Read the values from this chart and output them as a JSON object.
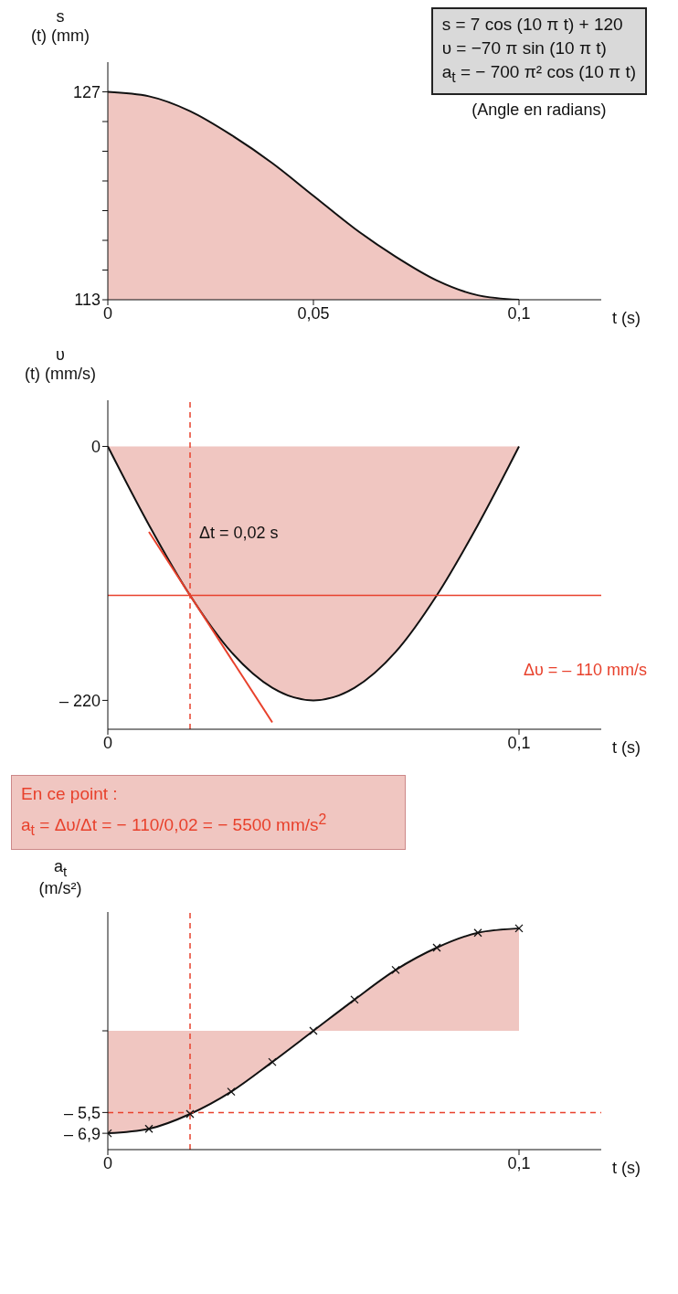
{
  "chart_data": [
    {
      "type": "area",
      "ylabel": "s (t) (mm)",
      "xlabel": "t (s)",
      "annotations": [
        "s  = 7 cos (10 π t) + 120",
        "υ  = −70 π sin (10 π t)",
        "a$_{t}$ = − 700 π² cos (10 π t)",
        "(Angle en radians)"
      ],
      "x": [
        0,
        0.01,
        0.02,
        0.03,
        0.04,
        0.05,
        0.06,
        0.07,
        0.08,
        0.09,
        0.1
      ],
      "series": [
        {
          "color": "#f0c6c1",
          "values": [
            127,
            126.7,
            125.7,
            124.1,
            122.2,
            120,
            117.8,
            115.9,
            114.3,
            113.3,
            113
          ]
        }
      ],
      "xlim": [
        0,
        0.12
      ],
      "ylim": [
        113,
        129
      ],
      "xticks": [
        {
          "value": 0,
          "label": "0"
        },
        {
          "value": 0.05,
          "label": "0,05"
        },
        {
          "value": 0.1,
          "label": "0,1"
        }
      ],
      "yticks": [
        113,
        {
          "value": 115,
          "label": null
        },
        {
          "value": 117,
          "label": null
        },
        {
          "value": 119,
          "label": null
        },
        {
          "value": 121,
          "label": null
        },
        {
          "value": 123,
          "label": null
        },
        {
          "value": 125,
          "label": null
        },
        127
      ],
      "grid": false,
      "legend": false,
      "marker": "none"
    },
    {
      "type": "area",
      "ylabel": "υ (t) (mm/s)",
      "xlabel": "t (s)",
      "annotations": [
        "Δt = 0,02 s",
        "Δυ = – 110 mm/s"
      ],
      "x": [
        0,
        0.01,
        0.02,
        0.03,
        0.04,
        0.05,
        0.06,
        0.07,
        0.08,
        0.09,
        0.1
      ],
      "series": [
        {
          "color": "#f0c6c1",
          "values": [
            0,
            -68,
            -129,
            -178,
            -209,
            -220,
            -209,
            -178,
            -129,
            -68,
            0
          ]
        },
        {
          "type": "line",
          "color": "#e8412c",
          "x": [
            0.01,
            0.04
          ],
          "values": [
            -74,
            -239
          ]
        }
      ],
      "xlim": [
        0,
        0.12
      ],
      "ylim": [
        -245,
        40
      ],
      "xticks": [
        {
          "value": 0,
          "label": "0"
        },
        {
          "value": 0.1,
          "label": "0,1"
        }
      ],
      "yticks": [
        0,
        {
          "value": -220,
          "label": "– 220"
        }
      ],
      "ref_lines": [
        {
          "axis": "x",
          "value": 0.02,
          "color": "#e8412c",
          "line_style": "dashed"
        },
        {
          "axis": "y",
          "value": -129,
          "color": "#e8412c",
          "line_style": "solid"
        }
      ],
      "grid": false,
      "legend": false,
      "marker": "none"
    },
    {
      "type": "area",
      "ylabel": "a$_{t}$ (m/s²)",
      "xlabel": "t (s)",
      "annotations": [
        "En ce point :",
        "a$_{t}$ = Δυ/Δt = − 110/0,02 = − 5500 mm/s$^{2}$"
      ],
      "x": [
        0,
        0.01,
        0.02,
        0.03,
        0.04,
        0.05,
        0.06,
        0.07,
        0.08,
        0.09,
        0.1
      ],
      "series": [
        {
          "color": "#f0c6c1",
          "values": [
            -6.9,
            -6.6,
            -5.6,
            -4.1,
            -2.1,
            0,
            2.1,
            4.1,
            5.6,
            6.6,
            6.9
          ]
        }
      ],
      "xlim": [
        0,
        0.12
      ],
      "ylim": [
        -8,
        8
      ],
      "xticks": [
        {
          "value": 0,
          "label": "0"
        },
        {
          "value": 0.1,
          "label": "0,1"
        }
      ],
      "yticks": [
        {
          "value": 0,
          "label": null
        },
        {
          "value": -5.5,
          "label": "– 5,5"
        },
        {
          "value": -6.9,
          "label": "– 6,9"
        }
      ],
      "ref_lines": [
        {
          "axis": "x",
          "value": 0.02,
          "color": "#e8412c",
          "line_style": "dashed"
        },
        {
          "axis": "y",
          "value": -5.5,
          "color": "#e8412c",
          "line_style": "dashed"
        }
      ],
      "grid": false,
      "legend": false,
      "marker": "cross"
    }
  ]
}
